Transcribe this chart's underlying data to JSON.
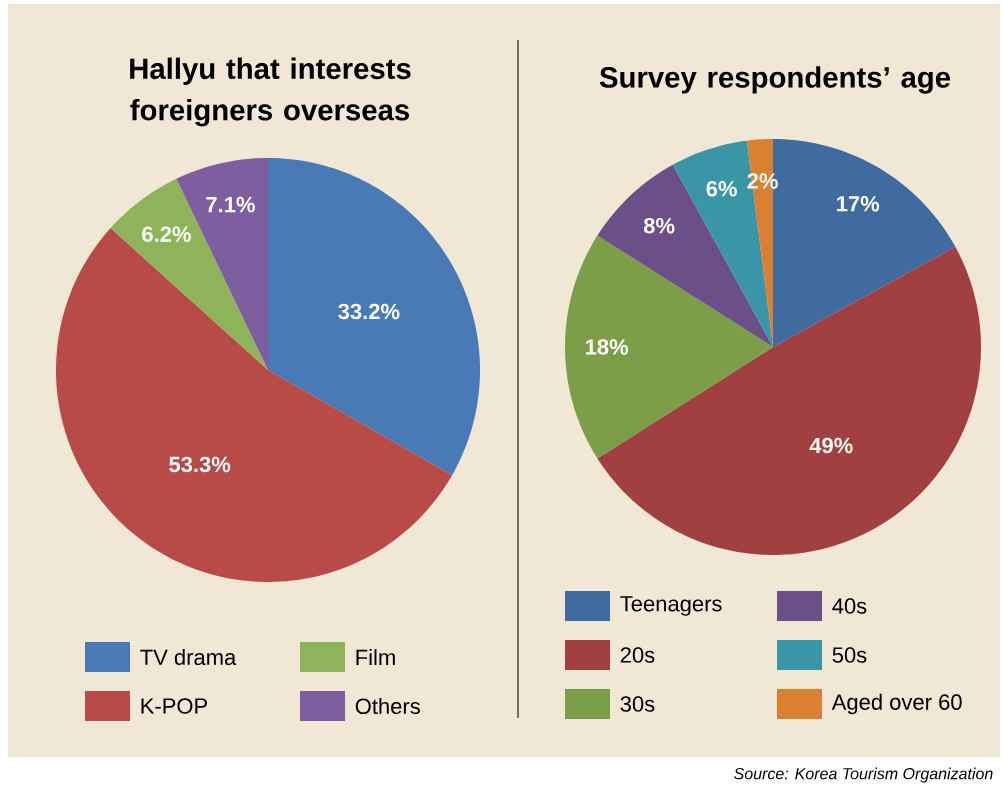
{
  "chart_data": [
    {
      "type": "pie",
      "title": "Hallyu that interests foreigners overseas",
      "categories": [
        "TV drama",
        "K-POP",
        "Film",
        "Others"
      ],
      "values": [
        33.2,
        53.3,
        6.2,
        7.1
      ],
      "value_labels": [
        "33.2%",
        "53.3%",
        "6.2%",
        "7.1%"
      ],
      "colors": [
        "#4a7ab5",
        "#b84b48",
        "#8fb35a",
        "#7d5e9e"
      ],
      "legend": "bottom"
    },
    {
      "type": "pie",
      "title": "Survey respondents’ age",
      "categories": [
        "Teenagers",
        "20s",
        "30s",
        "40s",
        "50s",
        "Aged over 60"
      ],
      "values": [
        17,
        49,
        18,
        8,
        6,
        2
      ],
      "value_labels": [
        "17%",
        "49%",
        "18%",
        "8%",
        "6%",
        "2%"
      ],
      "colors": [
        "#3f6b9e",
        "#a04040",
        "#7d9e48",
        "#6b5088",
        "#3a95a6",
        "#d98032"
      ],
      "legend": "bottom",
      "annotations": [
        "Source: Korea Tourism Organization"
      ]
    }
  ]
}
